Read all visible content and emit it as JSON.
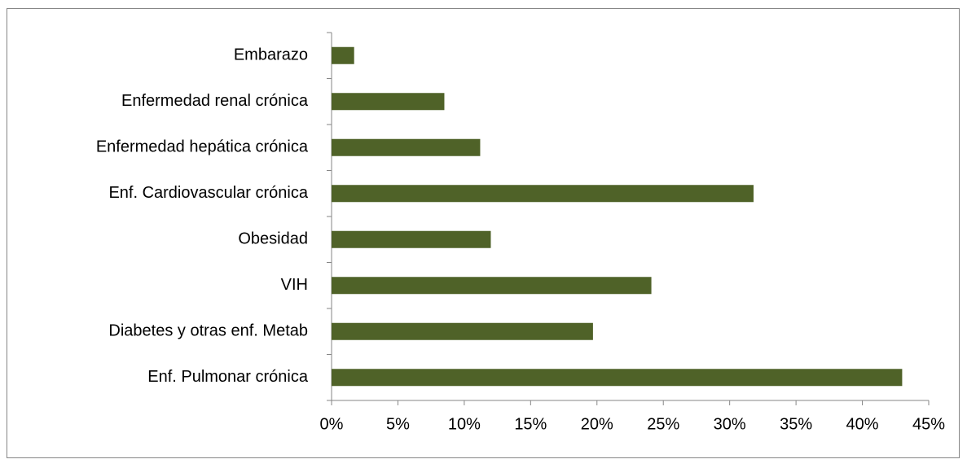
{
  "chart_data": {
    "type": "bar",
    "orientation": "horizontal",
    "categories": [
      "Embarazo",
      "Enfermedad renal crónica",
      "Enfermedad hepática crónica",
      "Enf. Cardiovascular crónica",
      "Obesidad",
      "VIH",
      "Diabetes y otras enf. Metab",
      "Enf. Pulmonar crónica"
    ],
    "values": [
      1.7,
      8.5,
      11.2,
      31.8,
      12.0,
      24.1,
      19.7,
      43.0
    ],
    "color": "#4f6228",
    "xlim": [
      0,
      45
    ],
    "xticks": [
      {
        "value": 0,
        "label": "0%"
      },
      {
        "value": 5,
        "label": "5%"
      },
      {
        "value": 10,
        "label": "10%"
      },
      {
        "value": 15,
        "label": "15%"
      },
      {
        "value": 20,
        "label": "20%"
      },
      {
        "value": 25,
        "label": "25%"
      },
      {
        "value": 30,
        "label": "30%"
      },
      {
        "value": 35,
        "label": "35%"
      },
      {
        "value": 40,
        "label": "40%"
      },
      {
        "value": 45,
        "label": "45%"
      }
    ],
    "grid": false
  }
}
